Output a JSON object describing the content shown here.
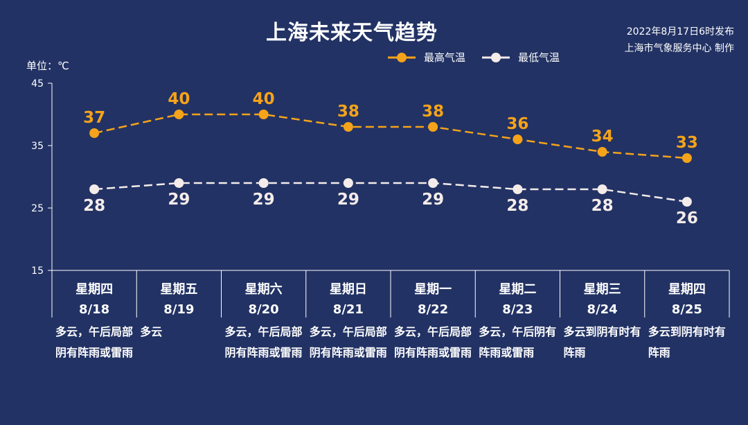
{
  "header": {
    "title": "上海未来天气趋势",
    "publish_line1": "2022年8月17日6时发布",
    "publish_line2": "上海市气象服务中心 制作"
  },
  "unit_label": "单位：℃",
  "colors": {
    "background": "#223264",
    "high": "#f5a31a",
    "low": "#f4ecea",
    "axis": "#ffffff"
  },
  "chart_data": {
    "type": "line",
    "title": "上海未来天气趋势",
    "ylabel": "单位：℃",
    "ylim": [
      15,
      45
    ],
    "yticks": [
      15,
      25,
      35,
      45
    ],
    "categories": [
      {
        "weekday": "星期四",
        "date": "8/18"
      },
      {
        "weekday": "星期五",
        "date": "8/19"
      },
      {
        "weekday": "星期六",
        "date": "8/20"
      },
      {
        "weekday": "星期日",
        "date": "8/21"
      },
      {
        "weekday": "星期一",
        "date": "8/22"
      },
      {
        "weekday": "星期二",
        "date": "8/23"
      },
      {
        "weekday": "星期三",
        "date": "8/24"
      },
      {
        "weekday": "星期四",
        "date": "8/25"
      }
    ],
    "series": [
      {
        "name": "最高气温",
        "values": [
          37,
          40,
          40,
          38,
          38,
          36,
          34,
          33
        ]
      },
      {
        "name": "最低气温",
        "values": [
          28,
          29,
          29,
          29,
          29,
          28,
          28,
          26
        ]
      }
    ],
    "descriptions": [
      "多云，午后局部阴有阵雨或雷雨",
      "多云",
      "多云，午后局部阴有阵雨或雷雨",
      "多云，午后局部阴有阵雨或雷雨",
      "多云，午后局部阴有阵雨或雷雨",
      "多云，午后阴有阵雨或雷雨",
      "多云到阴有时有阵雨",
      "多云到阴有时有阵雨"
    ],
    "legend_position": "top-center",
    "grid": false
  }
}
